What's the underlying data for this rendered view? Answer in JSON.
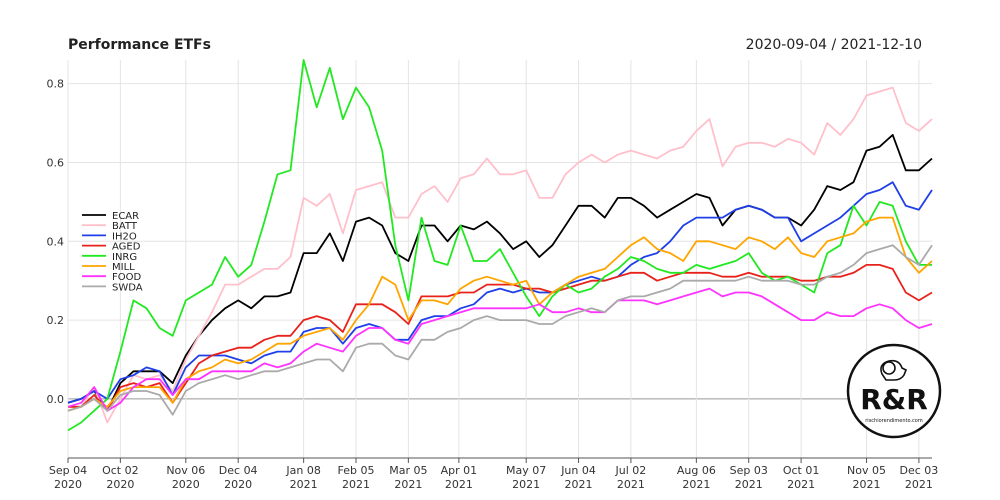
{
  "header": {
    "title": "Performance ETFs",
    "date_range": "2020-09-04 / 2021-12-10"
  },
  "logo": {
    "text": "R&R",
    "subtext": "rischiorendimento.com"
  },
  "chart_data": {
    "type": "line",
    "title": "Performance ETFs",
    "subtitle": "2020-09-04 / 2021-12-10",
    "xlabel": "",
    "ylabel": "",
    "ylim": [
      -0.15,
      0.86
    ],
    "yticks": [
      0.0,
      0.2,
      0.4,
      0.6,
      0.8
    ],
    "ytick_labels": [
      "0.0",
      "0.2",
      "0.4",
      "0.6",
      "0.8"
    ],
    "xticks": [
      {
        "date": "2020-09-04",
        "label": "Sep 04\n2020"
      },
      {
        "date": "2020-10-02",
        "label": "Oct 02\n2020"
      },
      {
        "date": "2020-11-06",
        "label": "Nov 06\n2020"
      },
      {
        "date": "2020-12-04",
        "label": "Dec 04\n2020"
      },
      {
        "date": "2021-01-08",
        "label": "Jan 08\n2021"
      },
      {
        "date": "2021-02-05",
        "label": "Feb 05\n2021"
      },
      {
        "date": "2021-03-05",
        "label": "Mar 05\n2021"
      },
      {
        "date": "2021-04-01",
        "label": "Apr 01\n2021"
      },
      {
        "date": "2021-05-07",
        "label": "May 07\n2021"
      },
      {
        "date": "2021-06-04",
        "label": "Jun 04\n2021"
      },
      {
        "date": "2021-07-02",
        "label": "Jul 02\n2021"
      },
      {
        "date": "2021-08-06",
        "label": "Aug 06\n2021"
      },
      {
        "date": "2021-09-03",
        "label": "Sep 03\n2021"
      },
      {
        "date": "2021-10-01",
        "label": "Oct 01\n2021"
      },
      {
        "date": "2021-11-05",
        "label": "Nov 05\n2021"
      },
      {
        "date": "2021-12-03",
        "label": "Dec 03\n2021"
      }
    ],
    "grid": true,
    "legend_position": "left",
    "x": [
      "2020-09-04",
      "2020-09-11",
      "2020-09-18",
      "2020-09-25",
      "2020-10-02",
      "2020-10-09",
      "2020-10-16",
      "2020-10-23",
      "2020-10-30",
      "2020-11-06",
      "2020-11-13",
      "2020-11-20",
      "2020-11-27",
      "2020-12-04",
      "2020-12-11",
      "2020-12-18",
      "2020-12-25",
      "2021-01-01",
      "2021-01-08",
      "2021-01-15",
      "2021-01-22",
      "2021-01-29",
      "2021-02-05",
      "2021-02-12",
      "2021-02-19",
      "2021-02-26",
      "2021-03-05",
      "2021-03-12",
      "2021-03-19",
      "2021-03-26",
      "2021-04-02",
      "2021-04-09",
      "2021-04-16",
      "2021-04-23",
      "2021-04-30",
      "2021-05-07",
      "2021-05-14",
      "2021-05-21",
      "2021-05-28",
      "2021-06-04",
      "2021-06-11",
      "2021-06-18",
      "2021-06-25",
      "2021-07-02",
      "2021-07-09",
      "2021-07-16",
      "2021-07-23",
      "2021-07-30",
      "2021-08-06",
      "2021-08-13",
      "2021-08-20",
      "2021-08-27",
      "2021-09-03",
      "2021-09-10",
      "2021-09-17",
      "2021-09-24",
      "2021-10-01",
      "2021-10-08",
      "2021-10-15",
      "2021-10-22",
      "2021-10-29",
      "2021-11-05",
      "2021-11-12",
      "2021-11-19",
      "2021-11-26",
      "2021-12-03",
      "2021-12-10"
    ],
    "series": [
      {
        "name": "ECAR",
        "color": "#000000",
        "values": [
          -0.01,
          0.0,
          0.02,
          -0.03,
          0.04,
          0.07,
          0.07,
          0.07,
          0.04,
          0.11,
          0.16,
          0.2,
          0.23,
          0.25,
          0.23,
          0.26,
          0.26,
          0.27,
          0.37,
          0.37,
          0.42,
          0.35,
          0.45,
          0.46,
          0.44,
          0.37,
          0.35,
          0.44,
          0.44,
          0.4,
          0.44,
          0.43,
          0.45,
          0.42,
          0.38,
          0.4,
          0.36,
          0.39,
          0.44,
          0.49,
          0.49,
          0.46,
          0.51,
          0.51,
          0.49,
          0.46,
          0.48,
          0.5,
          0.52,
          0.51,
          0.44,
          0.48,
          0.49,
          0.48,
          0.46,
          0.46,
          0.44,
          0.48,
          0.54,
          0.53,
          0.55,
          0.63,
          0.64,
          0.67,
          0.58,
          0.58,
          0.61
        ]
      },
      {
        "name": "BATT",
        "color": "#ffc0cb",
        "values": [
          -0.02,
          -0.02,
          0.03,
          -0.06,
          0.0,
          0.06,
          0.05,
          0.06,
          0.02,
          0.1,
          0.16,
          0.22,
          0.29,
          0.29,
          0.31,
          0.33,
          0.33,
          0.36,
          0.51,
          0.49,
          0.52,
          0.42,
          0.53,
          0.54,
          0.55,
          0.46,
          0.46,
          0.52,
          0.54,
          0.5,
          0.56,
          0.57,
          0.61,
          0.57,
          0.57,
          0.58,
          0.51,
          0.51,
          0.57,
          0.6,
          0.62,
          0.6,
          0.62,
          0.63,
          0.62,
          0.61,
          0.63,
          0.64,
          0.68,
          0.71,
          0.59,
          0.64,
          0.65,
          0.65,
          0.64,
          0.66,
          0.65,
          0.62,
          0.7,
          0.67,
          0.71,
          0.77,
          0.78,
          0.79,
          0.7,
          0.68,
          0.71
        ]
      },
      {
        "name": "IH2O",
        "color": "#1f3fe8",
        "values": [
          -0.01,
          0.0,
          0.02,
          0.0,
          0.05,
          0.06,
          0.08,
          0.07,
          0.01,
          0.08,
          0.11,
          0.11,
          0.11,
          0.1,
          0.09,
          0.11,
          0.12,
          0.12,
          0.17,
          0.18,
          0.18,
          0.14,
          0.18,
          0.19,
          0.18,
          0.15,
          0.15,
          0.2,
          0.21,
          0.21,
          0.23,
          0.24,
          0.27,
          0.28,
          0.27,
          0.28,
          0.27,
          0.27,
          0.29,
          0.3,
          0.31,
          0.3,
          0.31,
          0.34,
          0.36,
          0.37,
          0.4,
          0.44,
          0.46,
          0.46,
          0.46,
          0.48,
          0.49,
          0.48,
          0.46,
          0.46,
          0.4,
          0.42,
          0.44,
          0.46,
          0.49,
          0.52,
          0.53,
          0.55,
          0.49,
          0.48,
          0.53
        ]
      },
      {
        "name": "AGED",
        "color": "#e8221a",
        "values": [
          -0.02,
          -0.02,
          0.01,
          -0.03,
          0.03,
          0.04,
          0.03,
          0.04,
          -0.01,
          0.04,
          0.09,
          0.11,
          0.12,
          0.13,
          0.13,
          0.15,
          0.16,
          0.16,
          0.2,
          0.21,
          0.2,
          0.17,
          0.24,
          0.24,
          0.24,
          0.22,
          0.19,
          0.26,
          0.26,
          0.26,
          0.27,
          0.27,
          0.29,
          0.29,
          0.29,
          0.28,
          0.28,
          0.27,
          0.28,
          0.29,
          0.3,
          0.3,
          0.31,
          0.32,
          0.32,
          0.3,
          0.31,
          0.32,
          0.32,
          0.32,
          0.31,
          0.31,
          0.32,
          0.31,
          0.31,
          0.31,
          0.3,
          0.3,
          0.31,
          0.31,
          0.32,
          0.34,
          0.34,
          0.33,
          0.27,
          0.25,
          0.27
        ]
      },
      {
        "name": "INRG",
        "color": "#22e822",
        "values": [
          -0.08,
          -0.06,
          -0.03,
          0.0,
          0.12,
          0.25,
          0.23,
          0.18,
          0.16,
          0.25,
          0.27,
          0.29,
          0.36,
          0.31,
          0.34,
          0.45,
          0.57,
          0.58,
          0.86,
          0.74,
          0.84,
          0.71,
          0.79,
          0.74,
          0.63,
          0.39,
          0.25,
          0.46,
          0.35,
          0.34,
          0.44,
          0.35,
          0.35,
          0.38,
          0.32,
          0.26,
          0.21,
          0.26,
          0.29,
          0.27,
          0.28,
          0.31,
          0.33,
          0.36,
          0.35,
          0.33,
          0.32,
          0.32,
          0.34,
          0.33,
          0.34,
          0.35,
          0.37,
          0.32,
          0.3,
          0.31,
          0.29,
          0.27,
          0.37,
          0.39,
          0.49,
          0.44,
          0.5,
          0.49,
          0.4,
          0.34,
          0.34
        ]
      },
      {
        "name": "MILL",
        "color": "#ffa500",
        "values": [
          -0.03,
          -0.02,
          0.0,
          -0.02,
          0.02,
          0.03,
          0.03,
          0.03,
          -0.01,
          0.05,
          0.07,
          0.08,
          0.1,
          0.09,
          0.1,
          0.12,
          0.14,
          0.14,
          0.16,
          0.17,
          0.18,
          0.15,
          0.2,
          0.24,
          0.31,
          0.29,
          0.2,
          0.25,
          0.25,
          0.24,
          0.28,
          0.3,
          0.31,
          0.3,
          0.29,
          0.3,
          0.24,
          0.27,
          0.29,
          0.31,
          0.32,
          0.33,
          0.36,
          0.39,
          0.41,
          0.38,
          0.37,
          0.35,
          0.4,
          0.4,
          0.39,
          0.38,
          0.41,
          0.4,
          0.38,
          0.41,
          0.37,
          0.36,
          0.4,
          0.41,
          0.42,
          0.45,
          0.46,
          0.46,
          0.36,
          0.32,
          0.35
        ]
      },
      {
        "name": "FOOD",
        "color": "#ff33ff",
        "values": [
          -0.02,
          -0.01,
          0.03,
          -0.03,
          -0.01,
          0.03,
          0.05,
          0.05,
          0.01,
          0.05,
          0.05,
          0.07,
          0.07,
          0.07,
          0.07,
          0.09,
          0.08,
          0.09,
          0.12,
          0.14,
          0.13,
          0.12,
          0.16,
          0.18,
          0.18,
          0.15,
          0.14,
          0.19,
          0.2,
          0.21,
          0.22,
          0.23,
          0.23,
          0.23,
          0.23,
          0.23,
          0.24,
          0.22,
          0.22,
          0.23,
          0.22,
          0.22,
          0.25,
          0.25,
          0.25,
          0.24,
          0.25,
          0.26,
          0.27,
          0.28,
          0.26,
          0.27,
          0.27,
          0.26,
          0.24,
          0.22,
          0.2,
          0.2,
          0.22,
          0.21,
          0.21,
          0.23,
          0.24,
          0.23,
          0.2,
          0.18,
          0.19
        ]
      },
      {
        "name": "SWDA",
        "color": "#aaaaaa",
        "values": [
          -0.03,
          -0.02,
          0.0,
          -0.03,
          0.01,
          0.02,
          0.02,
          0.01,
          -0.04,
          0.02,
          0.04,
          0.05,
          0.06,
          0.05,
          0.06,
          0.07,
          0.07,
          0.08,
          0.09,
          0.1,
          0.1,
          0.07,
          0.13,
          0.14,
          0.14,
          0.11,
          0.1,
          0.15,
          0.15,
          0.17,
          0.18,
          0.2,
          0.21,
          0.2,
          0.2,
          0.2,
          0.19,
          0.19,
          0.21,
          0.22,
          0.23,
          0.22,
          0.25,
          0.26,
          0.26,
          0.27,
          0.28,
          0.3,
          0.3,
          0.3,
          0.3,
          0.3,
          0.31,
          0.3,
          0.3,
          0.3,
          0.29,
          0.29,
          0.31,
          0.32,
          0.34,
          0.37,
          0.38,
          0.39,
          0.36,
          0.34,
          0.39
        ]
      }
    ]
  }
}
